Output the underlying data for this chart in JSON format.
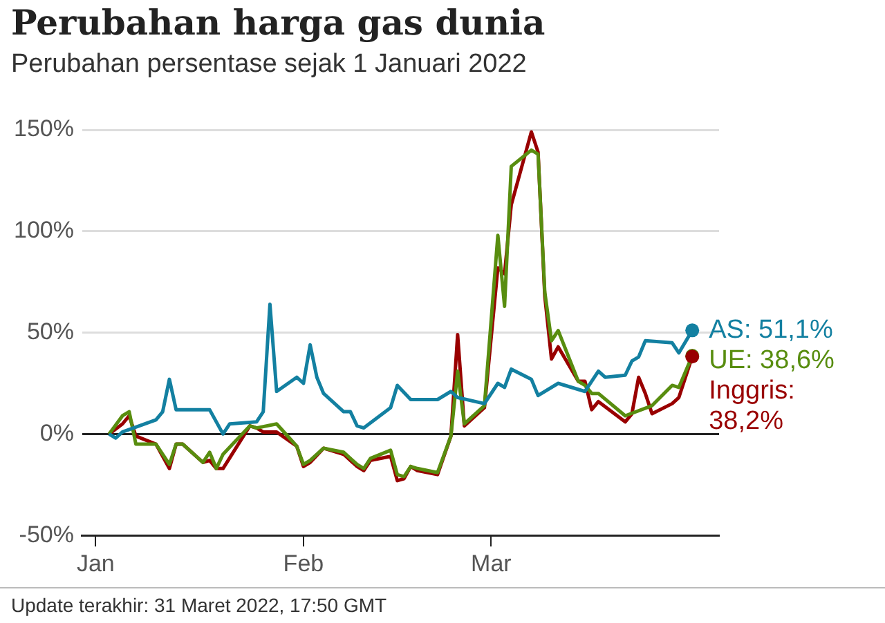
{
  "chart_data": {
    "type": "line",
    "title": "Perubahan harga gas dunia",
    "subtitle": "Perubahan persentase sejak 1 Januari 2022",
    "xlim": [
      "2021-12-30",
      "2022-04-04"
    ],
    "xticks": [
      {
        "value": "2022-01-01",
        "label": "Jan"
      },
      {
        "value": "2022-02-01",
        "label": "Feb"
      },
      {
        "value": "2022-03-01",
        "label": "Mar"
      }
    ],
    "ylim": [
      -50,
      150
    ],
    "yticks": [
      {
        "value": -50,
        "label": "-50%"
      },
      {
        "value": 0,
        "label": "0%"
      },
      {
        "value": 50,
        "label": "50%"
      },
      {
        "value": 100,
        "label": "100%"
      },
      {
        "value": 150,
        "label": "150%"
      }
    ],
    "grid": "y",
    "legend": false,
    "line_style": "solid",
    "series": [
      {
        "color": "#1380a1",
        "x": [
          "2022-01-03",
          "2022-01-04",
          "2022-01-05",
          "2022-01-10",
          "2022-01-11",
          "2022-01-12",
          "2022-01-13",
          "2022-01-18",
          "2022-01-20",
          "2022-01-21",
          "2022-01-25",
          "2022-01-26",
          "2022-01-27",
          "2022-01-28",
          "2022-01-31",
          "2022-02-01",
          "2022-02-02",
          "2022-02-03",
          "2022-02-04",
          "2022-02-07",
          "2022-02-08",
          "2022-02-09",
          "2022-02-10",
          "2022-02-14",
          "2022-02-15",
          "2022-02-17",
          "2022-02-21",
          "2022-02-23",
          "2022-02-24",
          "2022-02-28",
          "2022-03-02",
          "2022-03-03",
          "2022-03-04",
          "2022-03-07",
          "2022-03-08",
          "2022-03-11",
          "2022-03-15",
          "2022-03-17",
          "2022-03-18",
          "2022-03-21",
          "2022-03-22",
          "2022-03-23",
          "2022-03-24",
          "2022-03-28",
          "2022-03-29",
          "2022-03-31"
        ],
        "values": [
          0,
          -2,
          1,
          7,
          11,
          27,
          12,
          12,
          0,
          5,
          6,
          11,
          64,
          21,
          28,
          25,
          44,
          28,
          20,
          11,
          11,
          4,
          3,
          13,
          24,
          17,
          17,
          21,
          18,
          15,
          25,
          23,
          32,
          27,
          19,
          25,
          21,
          31,
          28,
          29,
          36,
          38,
          46,
          45,
          40,
          51.1
        ]
      },
      {
        "color": "#588d0f",
        "x": [
          "2022-01-03",
          "2022-01-05",
          "2022-01-06",
          "2022-01-07",
          "2022-01-10",
          "2022-01-12",
          "2022-01-13",
          "2022-01-14",
          "2022-01-17",
          "2022-01-18",
          "2022-01-19",
          "2022-01-20",
          "2022-01-24",
          "2022-01-25",
          "2022-01-28",
          "2022-01-31",
          "2022-02-01",
          "2022-02-02",
          "2022-02-04",
          "2022-02-07",
          "2022-02-09",
          "2022-02-10",
          "2022-02-11",
          "2022-02-14",
          "2022-02-15",
          "2022-02-16",
          "2022-02-17",
          "2022-02-18",
          "2022-02-21",
          "2022-02-23",
          "2022-02-24",
          "2022-02-25",
          "2022-02-28",
          "2022-03-02",
          "2022-03-03",
          "2022-03-04",
          "2022-03-07",
          "2022-03-08",
          "2022-03-09",
          "2022-03-10",
          "2022-03-11",
          "2022-03-14",
          "2022-03-15",
          "2022-03-16",
          "2022-03-17",
          "2022-03-21",
          "2022-03-25",
          "2022-03-28",
          "2022-03-29",
          "2022-03-31"
        ],
        "values": [
          0,
          9,
          11,
          -5,
          -5,
          -15,
          -5,
          -5,
          -14,
          -9,
          -17,
          -10,
          4,
          3,
          5,
          -6,
          -15,
          -13,
          -7,
          -9,
          -15,
          -17,
          -12,
          -8,
          -20,
          -21,
          -16,
          -17,
          -19,
          -1,
          31,
          5,
          14,
          98,
          63,
          132,
          140,
          138,
          70,
          46,
          51,
          26,
          24,
          20,
          20,
          9,
          14,
          24,
          23,
          38.6
        ]
      },
      {
        "color": "#990000",
        "x": [
          "2022-01-03",
          "2022-01-05",
          "2022-01-06",
          "2022-01-07",
          "2022-01-10",
          "2022-01-12",
          "2022-01-13",
          "2022-01-14",
          "2022-01-17",
          "2022-01-18",
          "2022-01-19",
          "2022-01-20",
          "2022-01-24",
          "2022-01-25",
          "2022-01-26",
          "2022-01-28",
          "2022-01-31",
          "2022-02-01",
          "2022-02-02",
          "2022-02-04",
          "2022-02-07",
          "2022-02-09",
          "2022-02-10",
          "2022-02-11",
          "2022-02-14",
          "2022-02-15",
          "2022-02-16",
          "2022-02-17",
          "2022-02-18",
          "2022-02-21",
          "2022-02-23",
          "2022-02-24",
          "2022-02-25",
          "2022-02-28",
          "2022-03-02",
          "2022-03-03",
          "2022-03-04",
          "2022-03-07",
          "2022-03-08",
          "2022-03-09",
          "2022-03-10",
          "2022-03-11",
          "2022-03-14",
          "2022-03-15",
          "2022-03-16",
          "2022-03-17",
          "2022-03-21",
          "2022-03-22",
          "2022-03-23",
          "2022-03-24",
          "2022-03-25",
          "2022-03-28",
          "2022-03-29",
          "2022-03-31"
        ],
        "values": [
          0,
          5,
          9,
          -1,
          -5,
          -17,
          -5,
          -5,
          -14,
          -13,
          -17,
          -17,
          4,
          3,
          1,
          1,
          -6,
          -16,
          -14,
          -7,
          -10,
          -16,
          -18,
          -13,
          -11,
          -23,
          -22,
          -16,
          -18,
          -20,
          -1,
          49,
          4,
          13,
          82,
          79,
          113,
          149,
          139,
          68,
          37,
          43,
          26,
          26,
          12,
          16,
          6,
          10,
          28,
          20,
          10,
          15,
          18,
          38.2
        ]
      }
    ],
    "annotations": [
      {
        "text": "AS: 51,1%",
        "x": "2022-03-31",
        "y": 51.1
      },
      {
        "text": "UE: 38,6%",
        "x": "2022-03-31",
        "y": 38.6
      },
      {
        "text": "Inggris: 38,2%",
        "x": "2022-03-31",
        "y": 38.2
      },
      "Update terakhir: 31 Maret 2022, 17:50 GMT"
    ]
  }
}
